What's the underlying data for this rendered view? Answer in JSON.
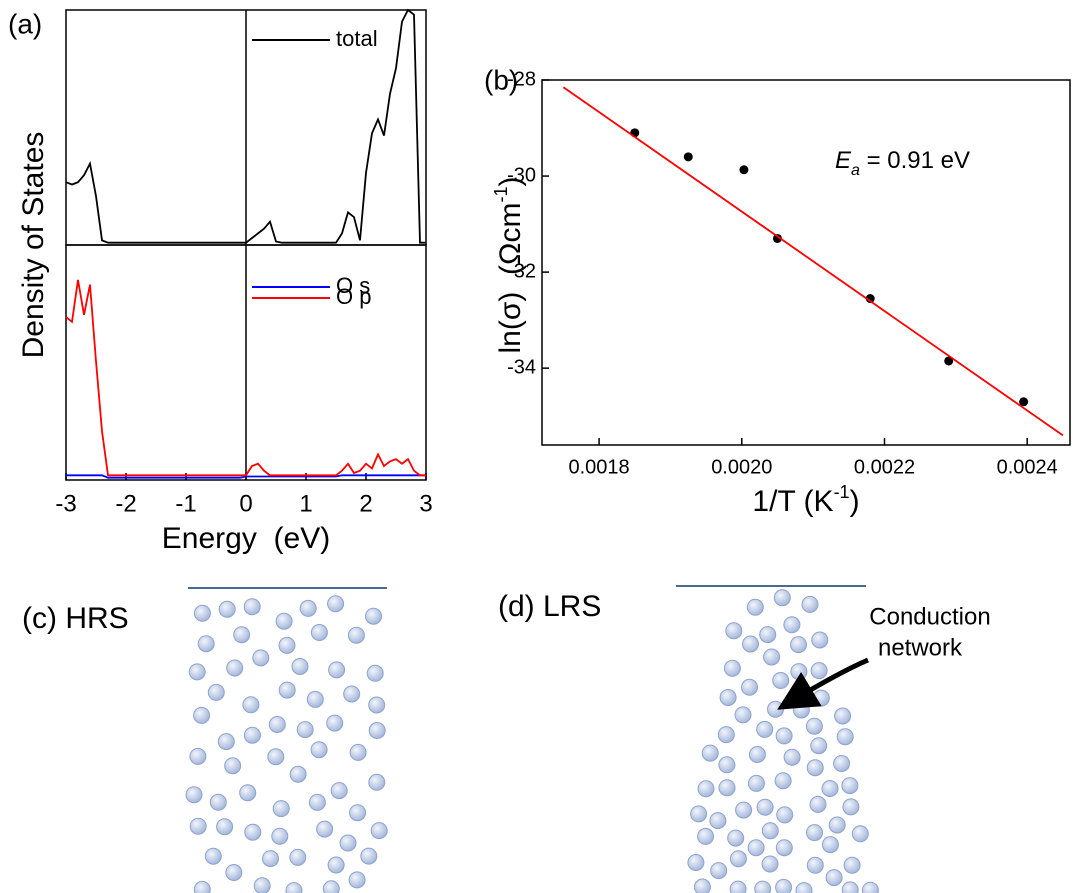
{
  "chart_data": [
    {
      "type": "line",
      "panel_label": "(a)",
      "y_label": "Density of States",
      "x": [
        -3.0,
        -2.9,
        -2.8,
        -2.7,
        -2.6,
        -2.5,
        -2.4,
        -2.3,
        -2.2,
        -2.1,
        -2.0,
        -1.9,
        -1.8,
        -1.7,
        -1.6,
        -1.5,
        -1.4,
        -1.3,
        -1.2,
        -1.1,
        -1.0,
        -0.9,
        -0.8,
        -0.7,
        -0.6,
        -0.5,
        -0.4,
        -0.3,
        -0.2,
        -0.1,
        0.0,
        0.1,
        0.2,
        0.3,
        0.4,
        0.5,
        0.6,
        0.7,
        0.8,
        0.9,
        1.0,
        1.1,
        1.2,
        1.3,
        1.4,
        1.5,
        1.6,
        1.7,
        1.8,
        1.9,
        2.0,
        2.1,
        2.2,
        2.3,
        2.4,
        2.5,
        2.6,
        2.7,
        2.8,
        2.9,
        3.0
      ],
      "series": [
        {
          "name": "total",
          "color": "#000000",
          "values": [
            2.6,
            2.5,
            2.6,
            2.9,
            3.4,
            2.0,
            0.1,
            0,
            0,
            0,
            0,
            0,
            0,
            0,
            0,
            0,
            0,
            0,
            0,
            0,
            0,
            0,
            0,
            0,
            0,
            0,
            0,
            0,
            0,
            0,
            0,
            0.2,
            0.4,
            0.6,
            0.9,
            0.05,
            0,
            0,
            0,
            0,
            0,
            0,
            0,
            0,
            0,
            0,
            0.4,
            1.3,
            1.1,
            0.1,
            3.0,
            4.7,
            5.3,
            4.6,
            6.4,
            7.5,
            9.5,
            10,
            9.8,
            0,
            0
          ]
        }
      ],
      "xlim": [
        -3,
        3
      ],
      "ylim": [
        -0.1,
        10
      ],
      "vline": 0
    },
    {
      "type": "line",
      "x_label": "Energy  (eV)",
      "x": [
        -3.0,
        -2.9,
        -2.8,
        -2.7,
        -2.6,
        -2.5,
        -2.4,
        -2.3,
        -2.2,
        -2.1,
        -2.0,
        -1.9,
        -1.8,
        -1.7,
        -1.6,
        -1.5,
        -1.4,
        -1.3,
        -1.2,
        -1.1,
        -1.0,
        -0.9,
        -0.8,
        -0.7,
        -0.6,
        -0.5,
        -0.4,
        -0.3,
        -0.2,
        -0.1,
        0.0,
        0.1,
        0.2,
        0.3,
        0.4,
        0.5,
        0.6,
        0.7,
        0.8,
        0.9,
        1.0,
        1.1,
        1.2,
        1.3,
        1.4,
        1.5,
        1.6,
        1.7,
        1.8,
        1.9,
        2.0,
        2.1,
        2.2,
        2.3,
        2.4,
        2.5,
        2.6,
        2.7,
        2.8,
        2.9,
        3.0
      ],
      "series": [
        {
          "name": "O s",
          "color": "#0000ff",
          "values": [
            0.1,
            0.1,
            0.1,
            0.1,
            0.1,
            0.1,
            0.1,
            0,
            0,
            0,
            0,
            0,
            0,
            0,
            0,
            0,
            0,
            0,
            0,
            0,
            0,
            0,
            0,
            0,
            0,
            0,
            0,
            0,
            0,
            0,
            0.05,
            0.05,
            0.05,
            0.05,
            0.05,
            0.05,
            0.05,
            0.05,
            0.05,
            0.05,
            0.05,
            0.05,
            0.05,
            0.05,
            0.05,
            0.05,
            0.1,
            0.1,
            0.1,
            0.1,
            0.1,
            0.1,
            0.1,
            0.1,
            0.1,
            0.1,
            0.1,
            0.1,
            0.1,
            0.1,
            0.1
          ]
        },
        {
          "name": "O p",
          "color": "#ff0000",
          "values": [
            6.9,
            6.7,
            8.5,
            7.0,
            8.3,
            5.0,
            2.0,
            0.1,
            0.1,
            0.1,
            0.1,
            0.1,
            0.1,
            0.1,
            0.1,
            0.1,
            0.1,
            0.1,
            0.1,
            0.1,
            0.1,
            0.1,
            0.1,
            0.1,
            0.1,
            0.1,
            0.1,
            0.1,
            0.1,
            0.1,
            0.1,
            0.5,
            0.6,
            0.3,
            0.1,
            0.1,
            0.1,
            0.1,
            0.1,
            0.1,
            0.1,
            0.1,
            0.1,
            0.1,
            0.1,
            0.1,
            0.3,
            0.6,
            0.2,
            0.3,
            0.6,
            0.4,
            1.0,
            0.5,
            0.7,
            0.8,
            0.6,
            0.8,
            0.3,
            0.1,
            0.1
          ]
        }
      ],
      "xlim": [
        -3,
        3
      ],
      "ylim": [
        -0.1,
        10
      ],
      "xticks": [
        -3,
        -2,
        -1,
        0,
        1,
        2,
        3
      ],
      "vline": 0
    },
    {
      "type": "scatter",
      "panel_label": "(b)",
      "y_label": [
        "ln(σ)  (Ωcm",
        "-1",
        ")"
      ],
      "x_label": [
        "1/T (K",
        "-1",
        ")"
      ],
      "annotation": {
        "symbol": "E",
        "subscript": "a",
        "text": " = 0.91 eV"
      },
      "series": [
        {
          "mode": "markers",
          "color": "#000000",
          "x": [
            0.00185,
            0.001925,
            0.002003,
            0.00205,
            0.00218,
            0.00229,
            0.002395
          ],
          "values": [
            -29.1,
            -29.6,
            -29.87,
            -31.3,
            -32.55,
            -33.85,
            -34.7
          ]
        },
        {
          "mode": "line",
          "color": "#ff0000",
          "x": [
            0.00175,
            0.00245
          ],
          "values": [
            -28.15,
            -35.4
          ]
        }
      ],
      "xlim": [
        0.00172,
        0.00246
      ],
      "ylim": [
        -35.6,
        -28
      ],
      "xticks": [
        0.0018,
        {
          "value": 0.002,
          "label": "0.0020"
        },
        0.0022,
        0.0024
      ],
      "yticks": [
        -28,
        -30,
        -32,
        -34
      ]
    }
  ],
  "diagrams": [
    {
      "label": "(c) HRS"
    },
    {
      "label": "(d) LRS",
      "annotation": [
        "Conduction",
        "network"
      ]
    }
  ]
}
